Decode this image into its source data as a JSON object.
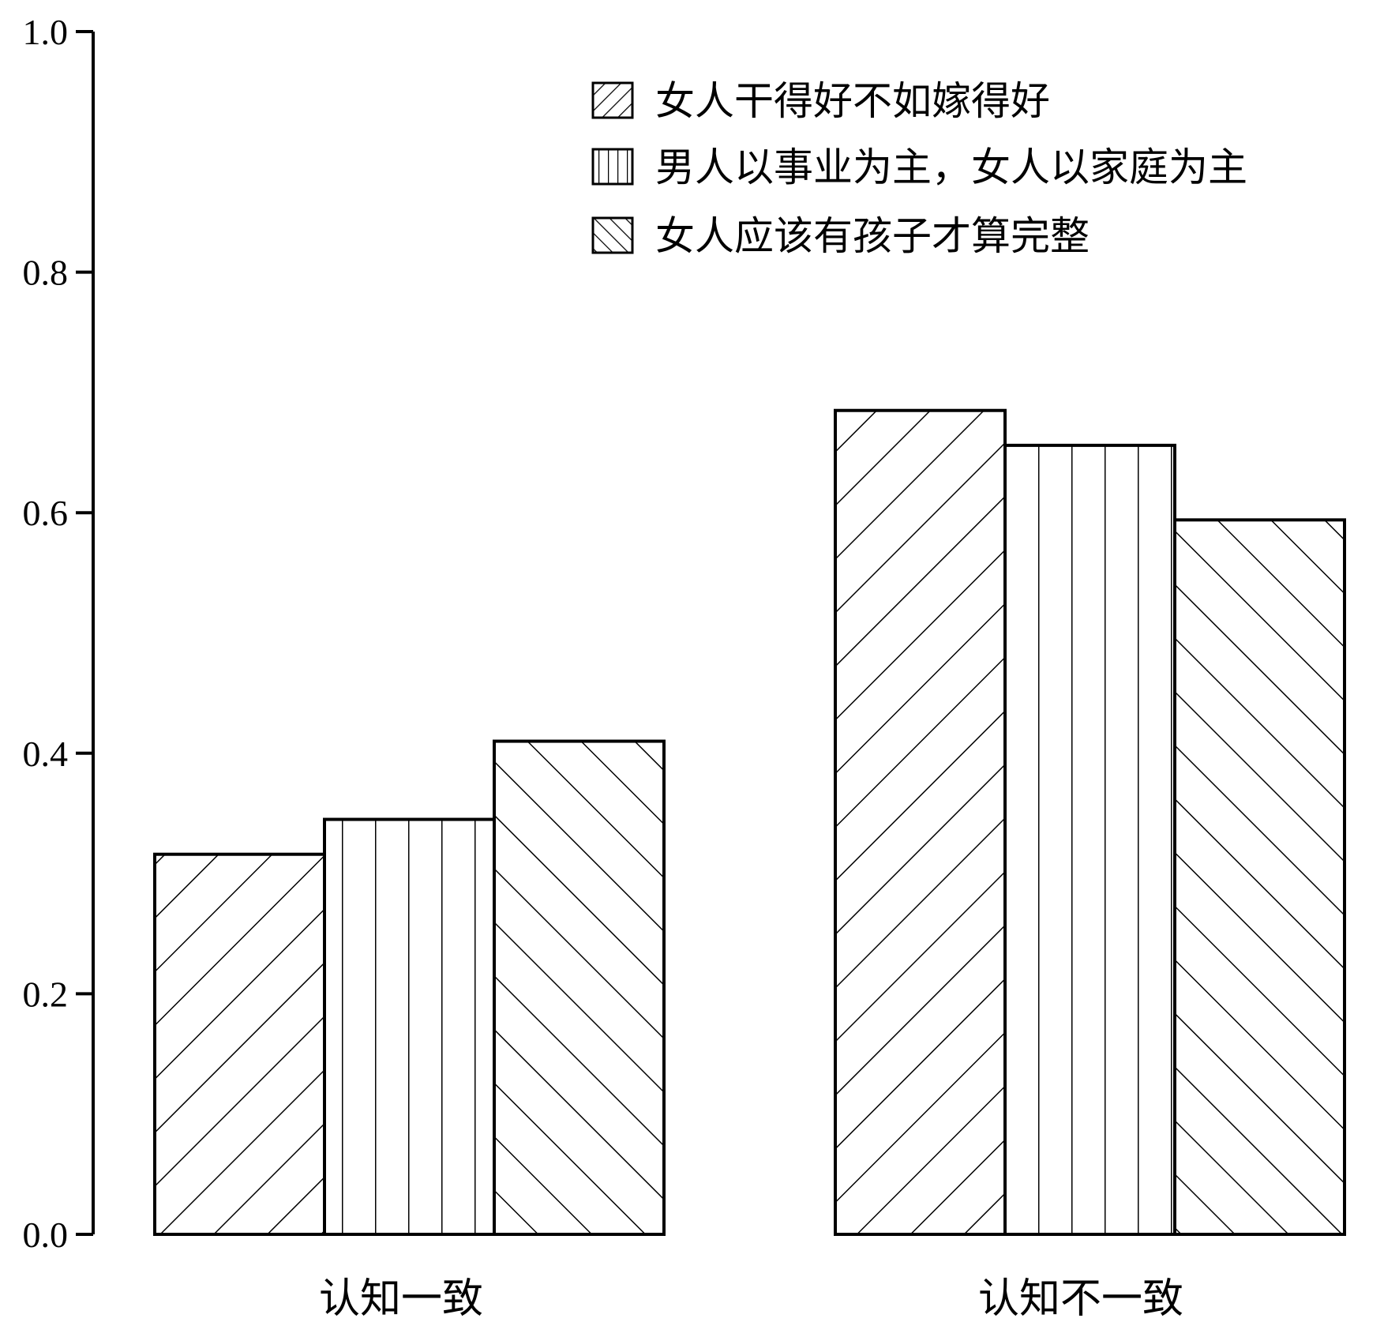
{
  "chart_data": {
    "type": "bar",
    "categories": [
      "认知一致",
      "认知不一致"
    ],
    "series": [
      {
        "name": "女人干得好不如嫁得好",
        "values": [
          0.316,
          0.685
        ],
        "pattern": "diag-up"
      },
      {
        "name": "男人以事业为主，女人以家庭为主",
        "values": [
          0.345,
          0.656
        ],
        "pattern": "vertical"
      },
      {
        "name": "女人应该有孩子才算完整",
        "values": [
          0.41,
          0.594
        ],
        "pattern": "diag-down"
      }
    ],
    "ylim": [
      0,
      1.0
    ],
    "yticks": [
      "0.0",
      "0.2",
      "0.4",
      "0.6",
      "0.8",
      "1.0"
    ],
    "grid": false,
    "legend_position": "top-right",
    "colors": {
      "stroke": "#000000",
      "fill": "#ffffff"
    }
  }
}
